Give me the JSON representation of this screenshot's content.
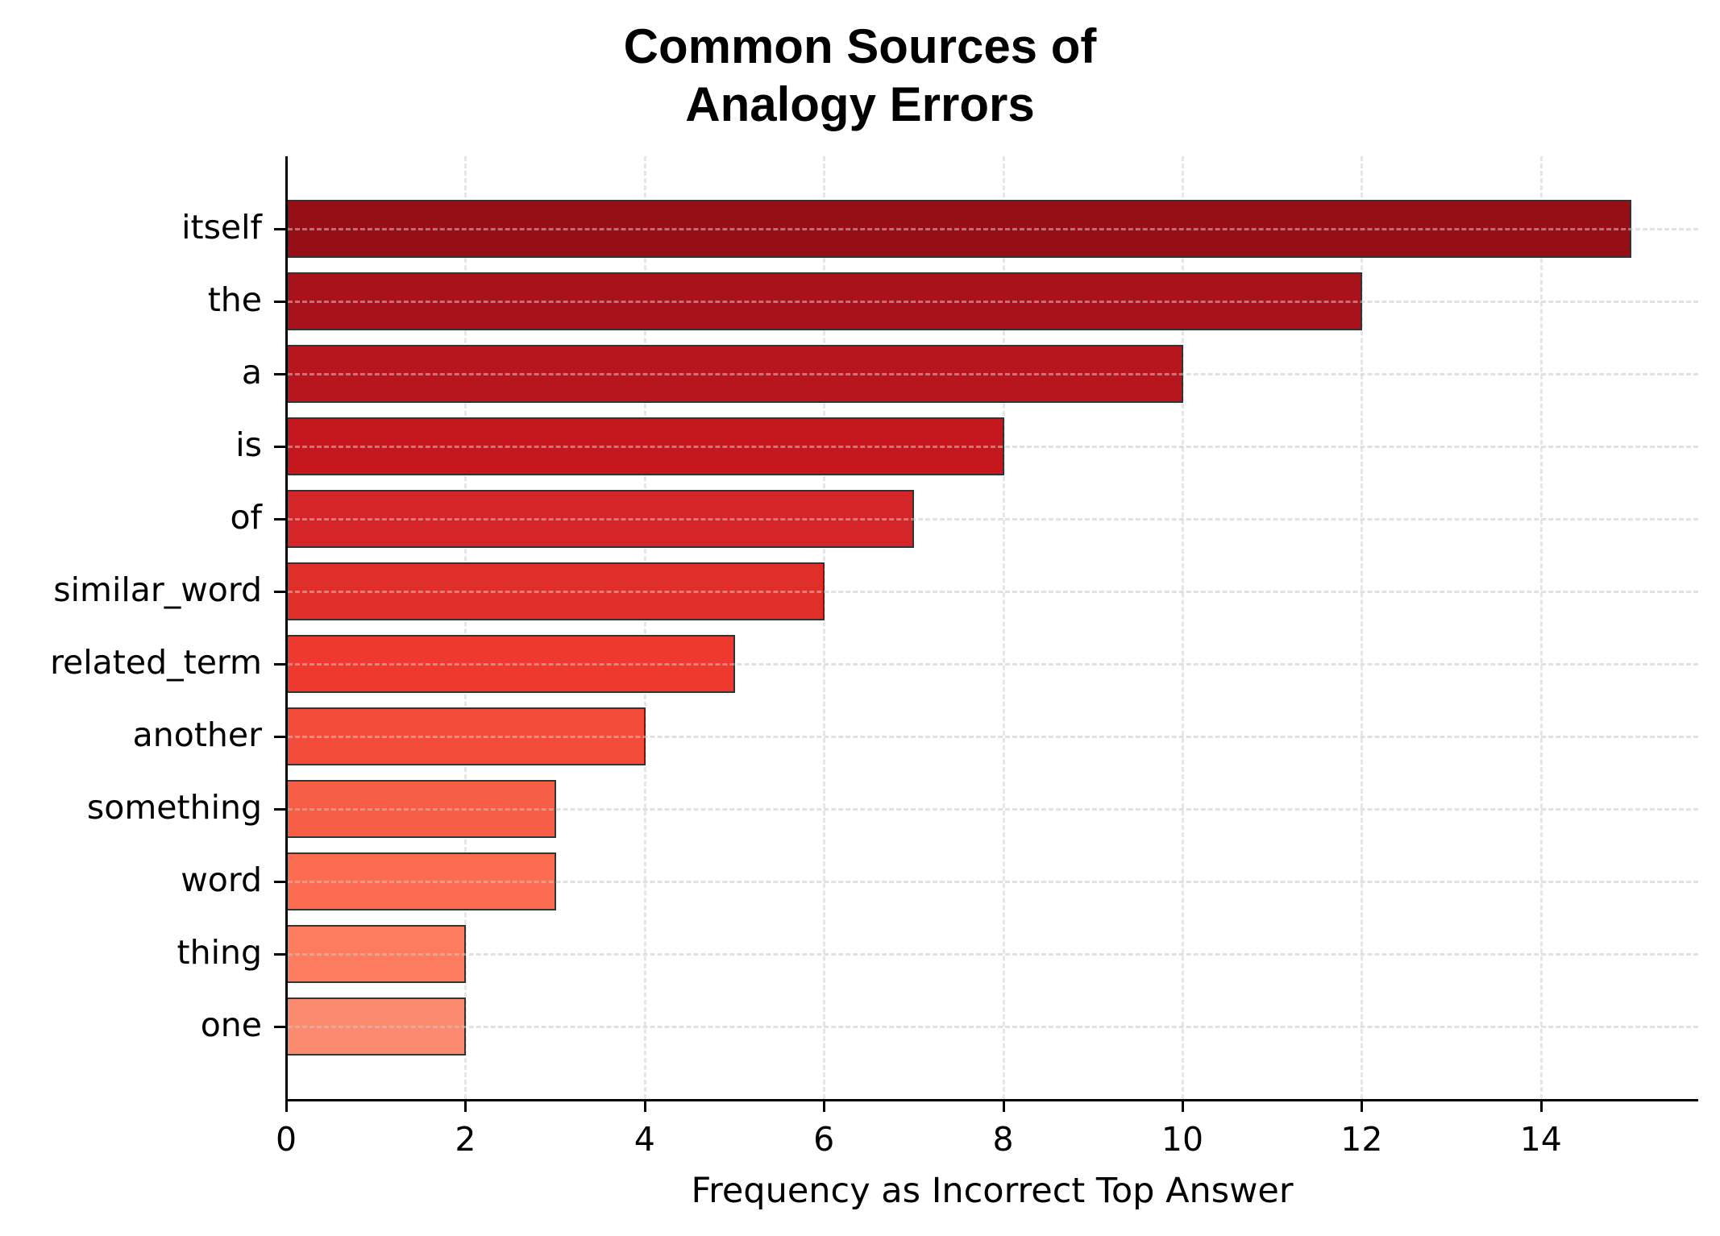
{
  "chart_data": {
    "type": "bar",
    "orientation": "horizontal",
    "title": "Common Sources of Analogy Errors",
    "title_lines": [
      "Common Sources of",
      "Analogy Errors"
    ],
    "xlabel": "Frequency as Incorrect Top Answer",
    "ylabel": "",
    "categories": [
      "itself",
      "the",
      "a",
      "is",
      "of",
      "similar_word",
      "related_term",
      "another",
      "something",
      "word",
      "thing",
      "one"
    ],
    "values": [
      15,
      12,
      10,
      8,
      7,
      6,
      5,
      4,
      3,
      3,
      2,
      2
    ],
    "colors": [
      "#970f16",
      "#a8121a",
      "#b8161f",
      "#c4181e",
      "#d42528",
      "#e02e28",
      "#ee3a2e",
      "#f34c3a",
      "#f65e45",
      "#fb6c50",
      "#fc7c5f",
      "#fb8b6f"
    ],
    "edge_color": "#333333",
    "xlim": [
      0,
      15.75
    ],
    "xticks": [
      0,
      2,
      4,
      6,
      8,
      10,
      12,
      14
    ],
    "xtick_labels": [
      "0",
      "2",
      "4",
      "6",
      "8",
      "10",
      "12",
      "14"
    ],
    "grid": true,
    "grid_style": "dashed",
    "legend": null
  }
}
